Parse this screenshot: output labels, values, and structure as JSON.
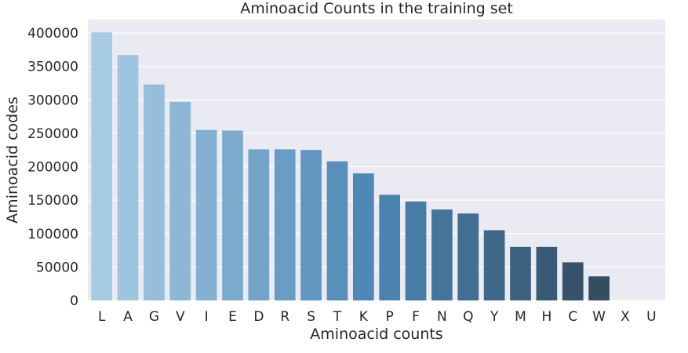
{
  "chart_data": {
    "type": "bar",
    "title": "Aminoacid Counts in the training set",
    "xlabel": "Aminoacid counts",
    "ylabel": "Aminoacid codes",
    "categories": [
      "L",
      "A",
      "G",
      "V",
      "I",
      "E",
      "D",
      "R",
      "S",
      "T",
      "K",
      "P",
      "F",
      "N",
      "Q",
      "Y",
      "M",
      "H",
      "C",
      "W",
      "X",
      "U"
    ],
    "values": [
      401000,
      367000,
      323000,
      297000,
      255000,
      254000,
      226000,
      226000,
      225000,
      208000,
      190000,
      158000,
      148000,
      136000,
      130000,
      105000,
      80000,
      80000,
      57000,
      36000,
      0,
      0
    ],
    "ylim": [
      0,
      420000
    ],
    "yticks": [
      0,
      50000,
      100000,
      150000,
      200000,
      250000,
      300000,
      350000,
      400000
    ],
    "ytick_labels": [
      "0",
      "50000",
      "100000",
      "150000",
      "200000",
      "250000",
      "300000",
      "350000",
      "400000"
    ],
    "grid": true,
    "legend": "none",
    "colors": {
      "plot_background": "#EAEAF2",
      "grid": "#FFFFFF",
      "text": "#262626",
      "palette_start": "#A8CBE4",
      "palette_mid": "#4A86B4",
      "palette_end": "#2E3F4E"
    }
  }
}
